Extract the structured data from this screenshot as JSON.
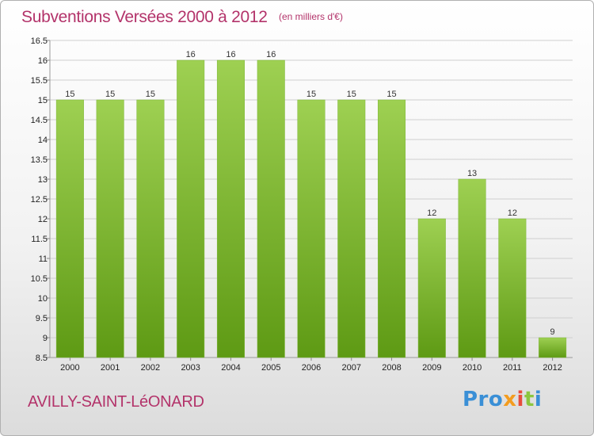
{
  "title": "Subventions Versées 2000 à 2012",
  "subtitle": "(en milliers d'€)",
  "commune": "AVILLY-SAINT-LéONARD",
  "logo": {
    "p1": "Pro",
    "p2": "x",
    "p3": "i",
    "p4": "t",
    "p5": "i"
  },
  "colors": {
    "title": "#b3336a",
    "bar_top": "#9ed052",
    "bar_bottom": "#5e9a14",
    "grid": "#cfcfcf"
  },
  "chart_data": {
    "type": "bar",
    "categories": [
      "2000",
      "2001",
      "2002",
      "2003",
      "2004",
      "2005",
      "2006",
      "2007",
      "2008",
      "2009",
      "2010",
      "2011",
      "2012"
    ],
    "values": [
      15,
      15,
      15,
      16,
      16,
      16,
      15,
      15,
      15,
      12,
      13,
      12,
      9
    ],
    "value_labels": [
      "15",
      "15",
      "15",
      "16",
      "16",
      "16",
      "15",
      "15",
      "15",
      "12",
      "13",
      "12",
      "9"
    ],
    "yticks": [
      "8.5",
      "9",
      "9.5",
      "10",
      "10.5",
      "11",
      "11.5",
      "12",
      "12.5",
      "13",
      "13.5",
      "14",
      "14.5",
      "15",
      "15.5",
      "16",
      "16.5"
    ],
    "ylim": [
      8.5,
      16.5
    ],
    "grid": true
  }
}
